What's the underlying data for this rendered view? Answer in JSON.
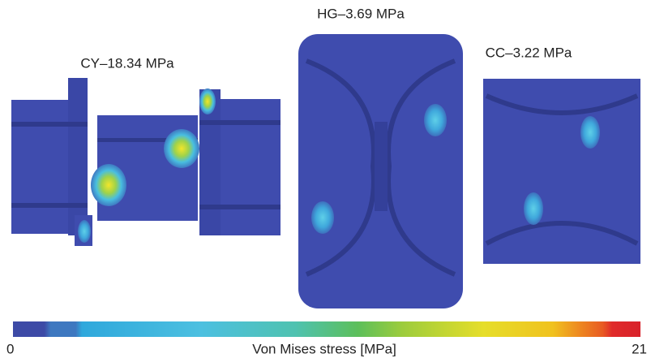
{
  "labels": {
    "cy": "CY–18.34 MPa",
    "hg": "HG–3.69 MPa",
    "cc": "CC–3.22 MPa"
  },
  "colorbar": {
    "min": 0,
    "max": 21,
    "title": "Von Mises stress [MPa]"
  }
}
